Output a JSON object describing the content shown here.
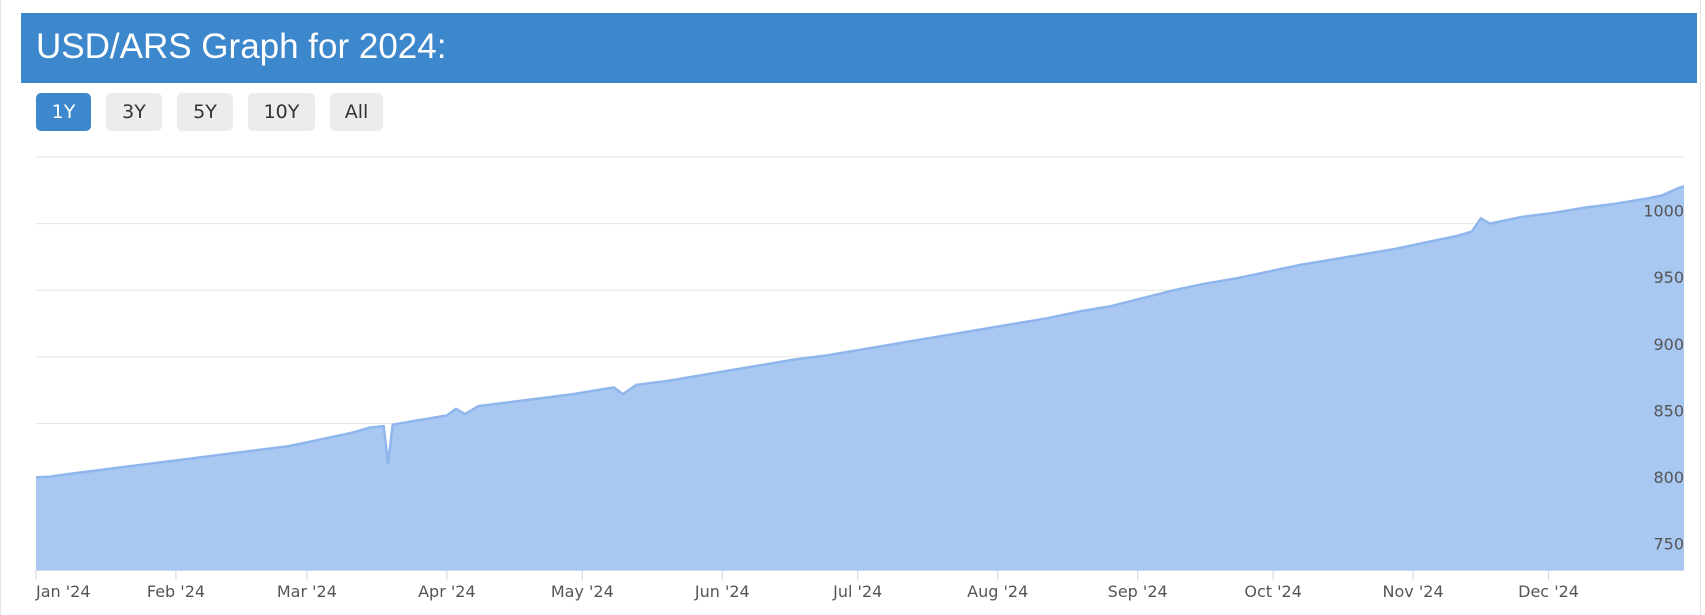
{
  "header": {
    "title": "USD/ARS Graph for 2024:"
  },
  "range_selector": {
    "buttons": [
      {
        "label": "1Y",
        "active": true
      },
      {
        "label": "3Y",
        "active": false
      },
      {
        "label": "5Y",
        "active": false
      },
      {
        "label": "10Y",
        "active": false
      },
      {
        "label": "All",
        "active": false
      }
    ]
  },
  "colors": {
    "header_bg": "#3d87cc",
    "area_fill": "#a8c8f2",
    "area_line": "#8fb6ec",
    "button_active": "#3d87cc",
    "button_inactive": "#ececec"
  },
  "chart_data": {
    "type": "area",
    "title": "",
    "xlabel": "",
    "ylabel": "",
    "x_tick_labels": [
      "Jan '24",
      "Feb '24",
      "Mar '24",
      "Apr '24",
      "May '24",
      "Jun '24",
      "Jul '24",
      "Aug '24",
      "Sep '24",
      "Oct '24",
      "Nov '24",
      "Dec '24"
    ],
    "y_tick_labels": [
      "750",
      "800",
      "850",
      "900",
      "950",
      "1000"
    ],
    "y_ticks": [
      750,
      800,
      850,
      900,
      950,
      1000
    ],
    "ylim": [
      740,
      1050
    ],
    "xlim": [
      "2024-01-01",
      "2024-12-31"
    ],
    "grid": true,
    "y_axis_position": "right",
    "series": [
      {
        "x": [
          "2024-01-01",
          "2024-01-04",
          "2024-01-08",
          "2024-01-15",
          "2024-01-22",
          "2024-01-29",
          "2024-02-05",
          "2024-02-12",
          "2024-02-19",
          "2024-02-26",
          "2024-03-04",
          "2024-03-11",
          "2024-03-15",
          "2024-03-18",
          "2024-03-19",
          "2024-03-20",
          "2024-03-25",
          "2024-04-01",
          "2024-04-03",
          "2024-04-05",
          "2024-04-08",
          "2024-04-15",
          "2024-04-22",
          "2024-04-29",
          "2024-05-06",
          "2024-05-08",
          "2024-05-10",
          "2024-05-13",
          "2024-05-20",
          "2024-05-27",
          "2024-06-03",
          "2024-06-10",
          "2024-06-17",
          "2024-06-24",
          "2024-07-01",
          "2024-07-08",
          "2024-07-15",
          "2024-07-22",
          "2024-07-29",
          "2024-08-05",
          "2024-08-12",
          "2024-08-19",
          "2024-08-26",
          "2024-09-02",
          "2024-09-09",
          "2024-09-16",
          "2024-09-23",
          "2024-09-30",
          "2024-10-07",
          "2024-10-14",
          "2024-10-21",
          "2024-10-28",
          "2024-11-04",
          "2024-11-11",
          "2024-11-14",
          "2024-11-16",
          "2024-11-18",
          "2024-11-25",
          "2024-12-02",
          "2024-12-09",
          "2024-12-16",
          "2024-12-23",
          "2024-12-26",
          "2024-12-30",
          "2024-12-31"
        ],
        "y": [
          809.5,
          810,
          812,
          815,
          818,
          821,
          824,
          827,
          830,
          833,
          838,
          843,
          847,
          848,
          820,
          849,
          852,
          856,
          861,
          857,
          863,
          866,
          869,
          872,
          876,
          877,
          872,
          879,
          882,
          886,
          890,
          894,
          898,
          901,
          905,
          909,
          913,
          917,
          921,
          925,
          929,
          934,
          938,
          944,
          950,
          955,
          959,
          964,
          969,
          973,
          977,
          981,
          986,
          991,
          994,
          1004,
          1000,
          1005,
          1008,
          1012,
          1015,
          1019,
          1021,
          1027,
          1028
        ]
      }
    ]
  }
}
